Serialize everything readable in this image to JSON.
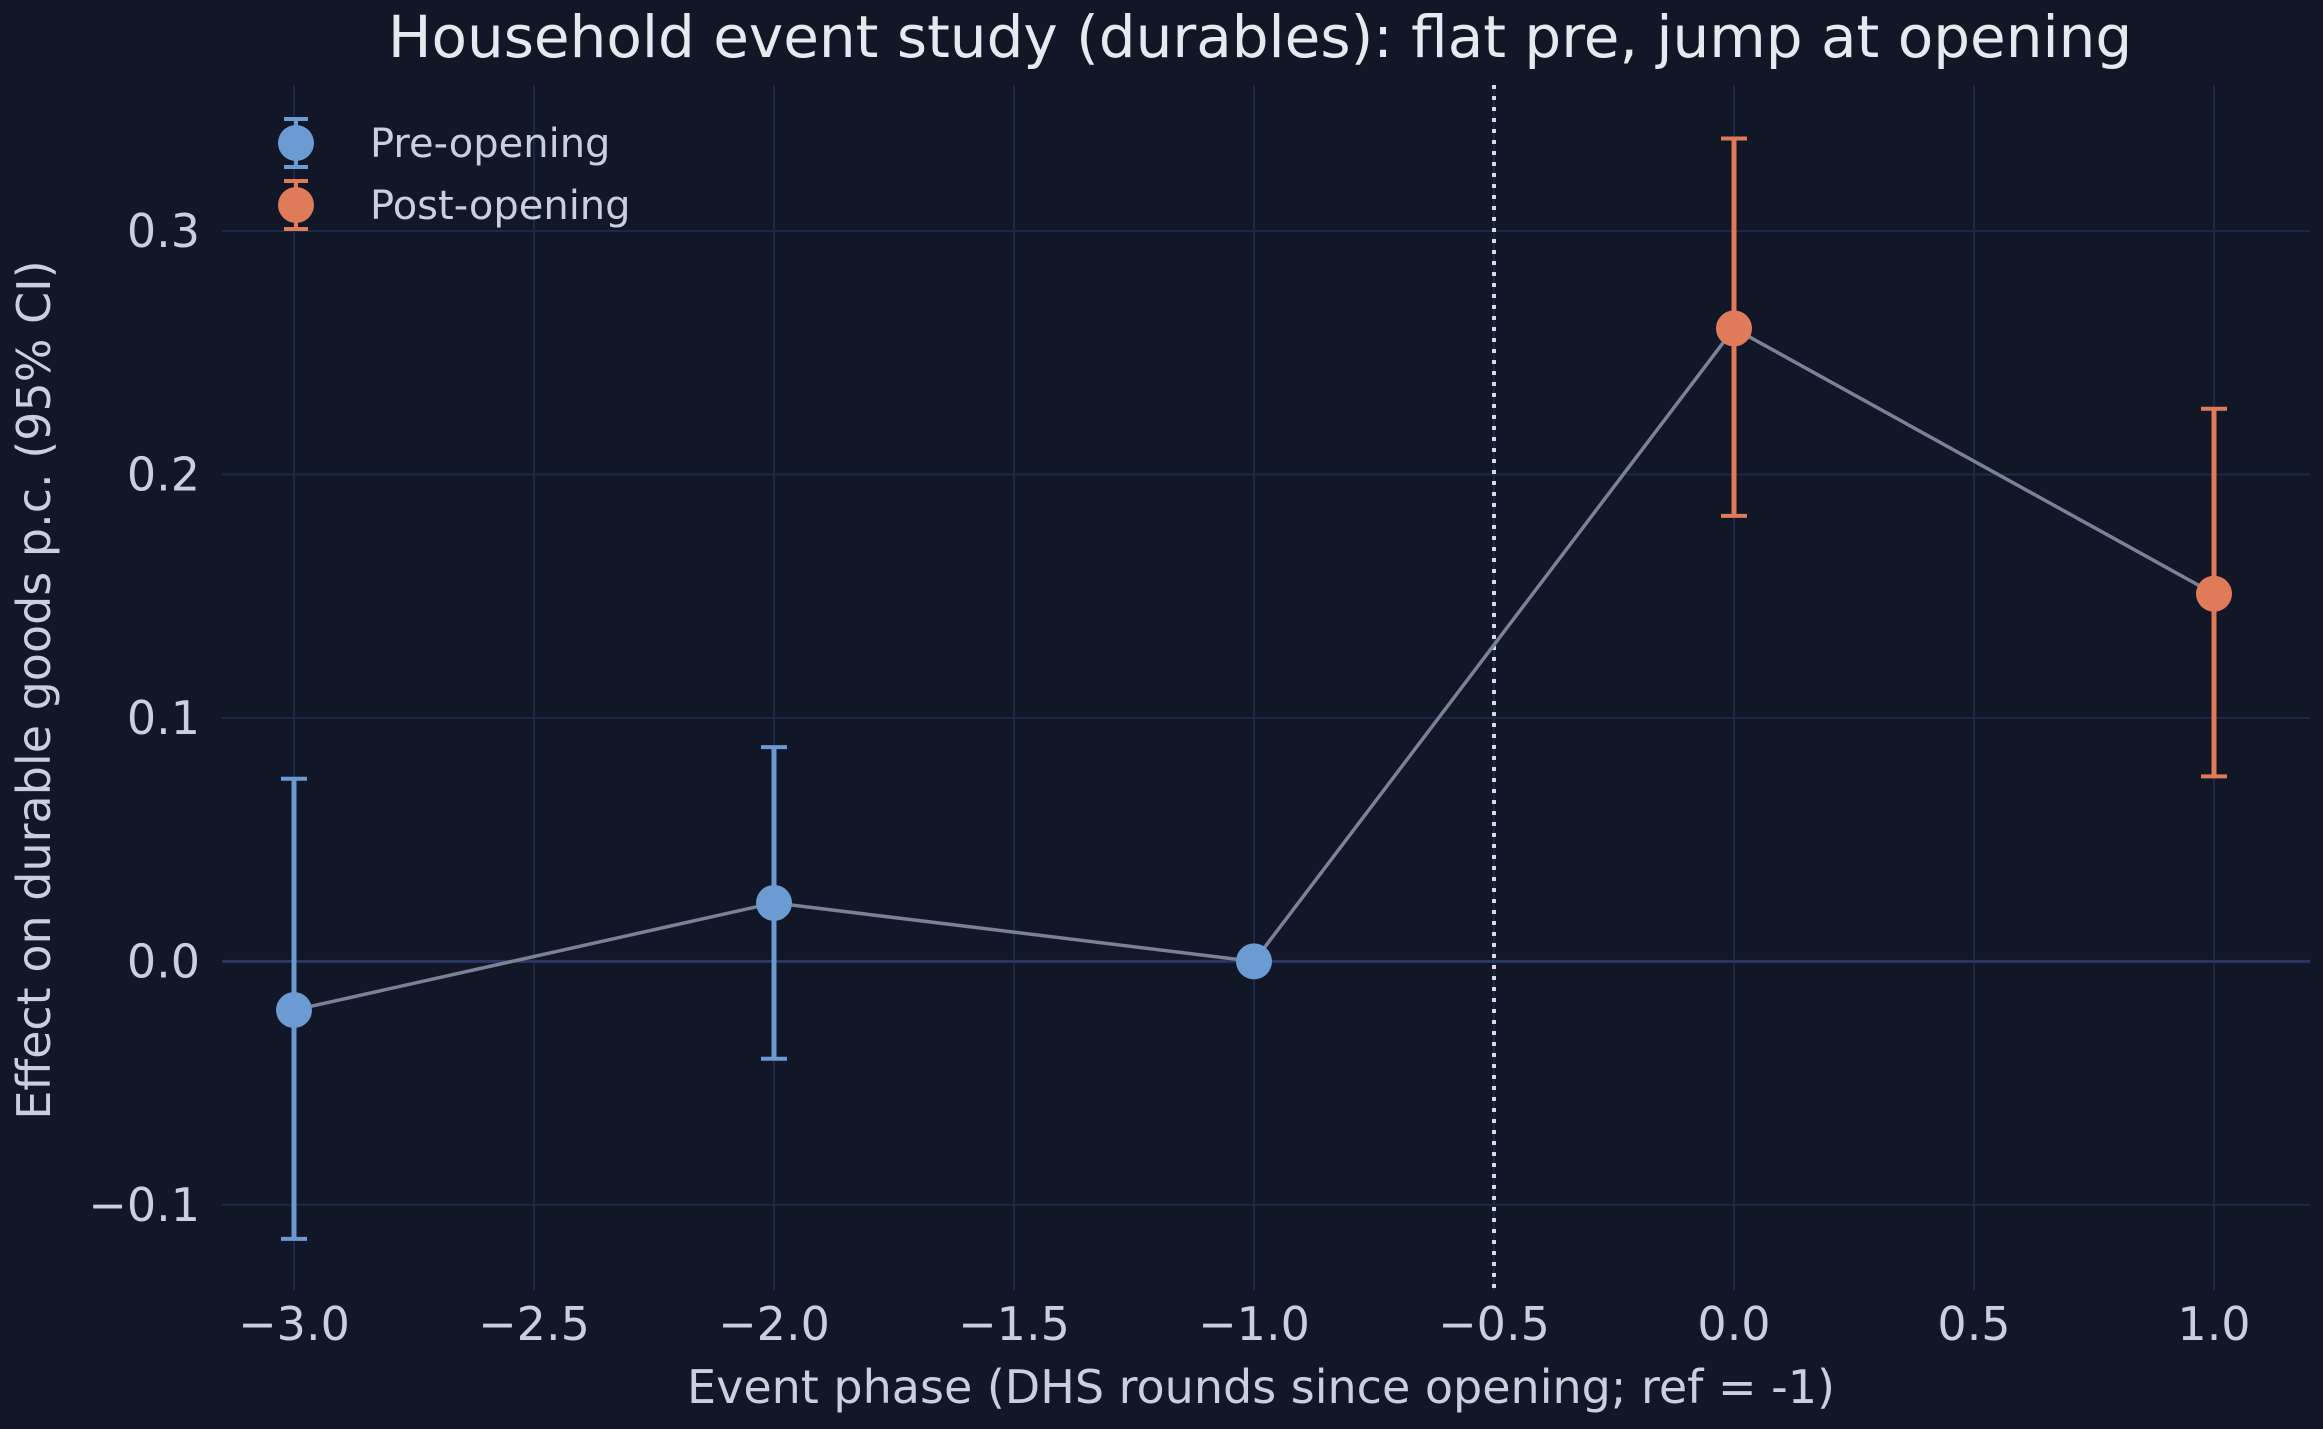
{
  "chart_data": {
    "type": "scatter",
    "title": "Household event study (durables): flat pre, jump at opening",
    "xlabel": "Event phase (DHS rounds since opening; ref = -1)",
    "ylabel": "Effect on durable goods p.c. (95% CI)",
    "xlim": [
      -3.15,
      1.2
    ],
    "ylim": [
      -0.135,
      0.36
    ],
    "x_ticks": [
      -3.0,
      -2.5,
      -2.0,
      -1.5,
      -1.0,
      -0.5,
      0.0,
      0.5,
      1.0
    ],
    "x_tick_labels": [
      "−3.0",
      "−2.5",
      "−2.0",
      "−1.5",
      "−1.0",
      "−0.5",
      "0.0",
      "0.5",
      "1.0"
    ],
    "y_ticks": [
      -0.1,
      0.0,
      0.1,
      0.2,
      0.3
    ],
    "y_tick_labels": [
      "−0.1",
      "0.0",
      "0.1",
      "0.2",
      "0.3"
    ],
    "grid": true,
    "vline_x": -0.5,
    "legend_position": "top-left",
    "connecting_line": true,
    "series": [
      {
        "name": "Pre-opening",
        "color": "#6b9bd2",
        "points": [
          {
            "x": -3,
            "y": -0.02,
            "lo": -0.114,
            "hi": 0.075
          },
          {
            "x": -2,
            "y": 0.024,
            "lo": -0.04,
            "hi": 0.088
          },
          {
            "x": -1,
            "y": 0.0,
            "lo": 0.0,
            "hi": 0.0
          }
        ]
      },
      {
        "name": "Post-opening",
        "color": "#e07b5a",
        "points": [
          {
            "x": 0,
            "y": 0.26,
            "lo": 0.183,
            "hi": 0.338
          },
          {
            "x": 1,
            "y": 0.151,
            "lo": 0.076,
            "hi": 0.227
          }
        ]
      }
    ]
  }
}
